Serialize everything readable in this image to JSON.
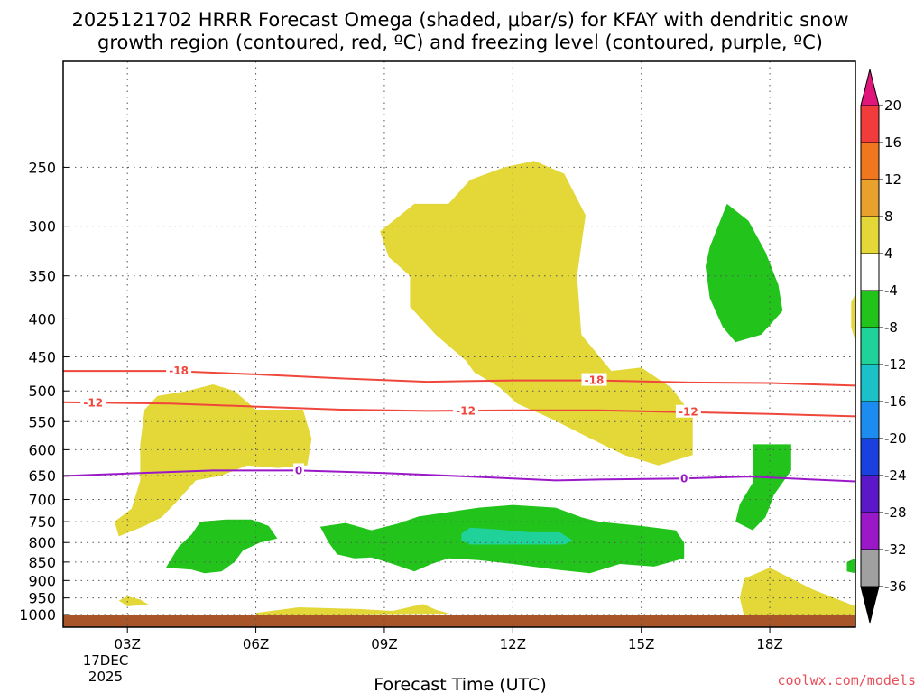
{
  "title_line1": "2025121702 HRRR Forecast Omega (shaded, μbar/s) for KFAY with dendritic snow",
  "title_line2": "growth region (contoured, red, ºC) and freezing level (contoured, purple, ºC)",
  "xlabel": "Forecast Time (UTC)",
  "credit": "coolwx.com/models",
  "date_line1": "17DEC",
  "date_line2": "2025",
  "colors": {
    "yellow": "#e3d838",
    "green": "#22c41c",
    "teal": "#1fd29a",
    "red": "#f0473c",
    "purple": "#9a18c8",
    "ground": "#a8552a"
  },
  "chart_data": {
    "type": "time-height cross-section",
    "x_ticks": [
      "03Z",
      "06Z",
      "09Z",
      "12Z",
      "15Z",
      "18Z"
    ],
    "x_range_hours": [
      1.5,
      20
    ],
    "y_ticks": [
      250,
      300,
      350,
      400,
      450,
      500,
      550,
      600,
      650,
      700,
      750,
      800,
      850,
      900,
      950,
      1000
    ],
    "y_range_hpa": [
      180,
      1040
    ],
    "contours": [
      {
        "label": "-18",
        "color": "#f0473c",
        "points": [
          [
            1.5,
            470
          ],
          [
            4,
            470
          ],
          [
            6,
            475
          ],
          [
            8,
            481
          ],
          [
            10,
            486
          ],
          [
            12,
            484
          ],
          [
            14,
            484
          ],
          [
            16,
            487
          ],
          [
            18,
            488
          ],
          [
            20,
            492
          ]
        ],
        "label_positions": [
          [
            4.2,
            470
          ],
          [
            13.9,
            484
          ]
        ]
      },
      {
        "label": "-12",
        "color": "#f0473c",
        "points": [
          [
            1.5,
            518
          ],
          [
            4,
            520
          ],
          [
            6,
            525
          ],
          [
            8,
            530
          ],
          [
            10,
            532
          ],
          [
            12,
            531
          ],
          [
            14,
            531
          ],
          [
            16,
            534
          ],
          [
            18,
            537
          ],
          [
            20,
            541
          ]
        ],
        "label_positions": [
          [
            2.2,
            519
          ],
          [
            10.9,
            532
          ],
          [
            16.1,
            534
          ]
        ]
      },
      {
        "label": "0",
        "color": "#9a18c8",
        "points": [
          [
            1.5,
            651
          ],
          [
            3,
            646
          ],
          [
            5,
            640
          ],
          [
            7,
            640
          ],
          [
            9,
            645
          ],
          [
            11,
            652
          ],
          [
            13,
            660
          ],
          [
            14,
            658
          ],
          [
            16,
            656
          ],
          [
            17.5,
            652
          ],
          [
            20,
            662
          ]
        ],
        "label_positions": [
          [
            7,
            640
          ],
          [
            16,
            656
          ]
        ]
      }
    ],
    "shaded_regions": [
      {
        "level": "4 to 8",
        "color": "#e3d838",
        "polygon": [
          [
            9.7,
            280
          ],
          [
            10.5,
            280
          ],
          [
            11,
            260
          ],
          [
            11.8,
            250
          ],
          [
            12.5,
            245
          ],
          [
            13.2,
            255
          ],
          [
            13.7,
            290
          ],
          [
            13.5,
            350
          ],
          [
            13.6,
            420
          ],
          [
            14.3,
            470
          ],
          [
            15,
            465
          ],
          [
            15.7,
            495
          ],
          [
            16.2,
            540
          ],
          [
            16.2,
            610
          ],
          [
            15.4,
            630
          ],
          [
            14.6,
            610
          ],
          [
            13.7,
            575
          ],
          [
            12.9,
            545
          ],
          [
            12.1,
            520
          ],
          [
            11.7,
            495
          ],
          [
            11.1,
            472
          ],
          [
            10.9,
            455
          ],
          [
            10.2,
            420
          ],
          [
            9.6,
            385
          ],
          [
            9.6,
            350
          ],
          [
            9.1,
            330
          ],
          [
            8.9,
            305
          ]
        ]
      },
      {
        "level": "4 to 8",
        "color": "#e3d838",
        "polygon": [
          [
            3.4,
            530
          ],
          [
            3.7,
            508
          ],
          [
            4.4,
            500
          ],
          [
            5,
            490
          ],
          [
            5.5,
            500
          ],
          [
            6,
            530
          ],
          [
            7.1,
            530
          ],
          [
            7.3,
            580
          ],
          [
            7.2,
            630
          ],
          [
            6.5,
            635
          ],
          [
            5.8,
            630
          ],
          [
            5.2,
            650
          ],
          [
            4.6,
            660
          ],
          [
            4.2,
            700
          ],
          [
            3.8,
            740
          ],
          [
            3.4,
            760
          ],
          [
            2.8,
            785
          ],
          [
            2.7,
            750
          ],
          [
            3.1,
            720
          ],
          [
            3.3,
            660
          ],
          [
            3.3,
            590
          ]
        ]
      },
      {
        "level": "4 to 8",
        "color": "#e3d838",
        "polygon": [
          [
            2.8,
            958
          ],
          [
            3,
            945
          ],
          [
            3.3,
            955
          ],
          [
            3.5,
            970
          ],
          [
            3,
            975
          ]
        ]
      },
      {
        "level": "4 to 8",
        "color": "#e3d838",
        "polygon": [
          [
            6,
            995
          ],
          [
            7,
            978
          ],
          [
            8.4,
            983
          ],
          [
            9.2,
            989
          ],
          [
            9.9,
            968
          ],
          [
            10.2,
            985
          ],
          [
            10.6,
            1000
          ],
          [
            6,
            1005
          ]
        ]
      },
      {
        "level": "4 to 8",
        "color": "#e3d838",
        "polygon": [
          [
            17.4,
            895
          ],
          [
            17.8,
            875
          ],
          [
            18,
            865
          ],
          [
            19,
            925
          ],
          [
            20,
            975
          ],
          [
            20,
            1005
          ],
          [
            17.4,
            1005
          ],
          [
            17.3,
            950
          ]
        ]
      },
      {
        "level": "4 to 8",
        "color": "#e3d838",
        "polygon": [
          [
            19.9,
            380
          ],
          [
            20,
            370
          ],
          [
            20,
            430
          ],
          [
            19.9,
            410
          ]
        ]
      },
      {
        "level": "-8 to -4",
        "color": "#22c41c",
        "polygon": [
          [
            16.6,
            320
          ],
          [
            17,
            280
          ],
          [
            17.5,
            295
          ],
          [
            17.9,
            325
          ],
          [
            18.2,
            360
          ],
          [
            18.3,
            390
          ],
          [
            17.8,
            420
          ],
          [
            17.2,
            430
          ],
          [
            16.9,
            410
          ],
          [
            16.6,
            375
          ],
          [
            16.5,
            340
          ]
        ]
      },
      {
        "level": "-8 to -4",
        "color": "#22c41c",
        "polygon": [
          [
            17.6,
            590
          ],
          [
            18.5,
            590
          ],
          [
            18.5,
            640
          ],
          [
            18.1,
            690
          ],
          [
            17.9,
            740
          ],
          [
            17.6,
            770
          ],
          [
            17.2,
            750
          ],
          [
            17.3,
            710
          ],
          [
            17.6,
            665
          ]
        ]
      },
      {
        "level": "-8 to -4",
        "color": "#22c41c",
        "polygon": [
          [
            19.8,
            850
          ],
          [
            20,
            840
          ],
          [
            20,
            880
          ],
          [
            19.8,
            875
          ]
        ]
      },
      {
        "level": "-8 to -4",
        "color": "#22c41c",
        "polygon": [
          [
            4.2,
            810
          ],
          [
            4.5,
            780
          ],
          [
            4.7,
            750
          ],
          [
            5.3,
            745
          ],
          [
            5.9,
            745
          ],
          [
            6.3,
            760
          ],
          [
            6.5,
            790
          ],
          [
            6.1,
            800
          ],
          [
            5.7,
            820
          ],
          [
            5.5,
            850
          ],
          [
            5.2,
            875
          ],
          [
            4.8,
            880
          ],
          [
            4.5,
            870
          ],
          [
            3.9,
            865
          ]
        ]
      },
      {
        "level": "-8 to -4",
        "color": "#22c41c",
        "polygon": [
          [
            7.5,
            762
          ],
          [
            8.1,
            753
          ],
          [
            8.7,
            770
          ],
          [
            9.3,
            755
          ],
          [
            9.8,
            738
          ],
          [
            10.5,
            728
          ],
          [
            11.2,
            718
          ],
          [
            12,
            712
          ],
          [
            13,
            718
          ],
          [
            13.6,
            740
          ],
          [
            14,
            750
          ],
          [
            15,
            760
          ],
          [
            15.8,
            770
          ],
          [
            16,
            800
          ],
          [
            16,
            840
          ],
          [
            15.3,
            862
          ],
          [
            14.5,
            855
          ],
          [
            13.8,
            880
          ],
          [
            13,
            870
          ],
          [
            12,
            855
          ],
          [
            11.2,
            845
          ],
          [
            10.5,
            840
          ],
          [
            10.1,
            855
          ],
          [
            9.7,
            875
          ],
          [
            9.2,
            855
          ],
          [
            8.7,
            838
          ],
          [
            8.3,
            840
          ],
          [
            7.9,
            830
          ],
          [
            7.7,
            800
          ]
        ]
      },
      {
        "level": "-12 to -8",
        "color": "#1fd29a",
        "polygon": [
          [
            10.8,
            778
          ],
          [
            11,
            764
          ],
          [
            11.6,
            768
          ],
          [
            12.4,
            775
          ],
          [
            13.1,
            775
          ],
          [
            13.4,
            795
          ],
          [
            13.2,
            805
          ],
          [
            12.4,
            805
          ],
          [
            11.6,
            805
          ],
          [
            11,
            805
          ],
          [
            10.8,
            795
          ]
        ]
      }
    ],
    "colorbar": {
      "levels": [
        "20",
        "16",
        "12",
        "8",
        "4",
        "-4",
        "-8",
        "-12",
        "-16",
        "-20",
        "-24",
        "-28",
        "-32",
        "-36"
      ],
      "colors": [
        "#f23c3c",
        "#f0771e",
        "#e8a22c",
        "#e3d838",
        "#ffffff",
        "#22c41c",
        "#1fd29a",
        "#1cc0c8",
        "#1c8cf0",
        "#1a40e0",
        "#5a18c8",
        "#9a18c8",
        "#a0a0a0"
      ],
      "top_arrow_color": "#e0167a",
      "bottom_arrow_color": "#000000"
    }
  }
}
